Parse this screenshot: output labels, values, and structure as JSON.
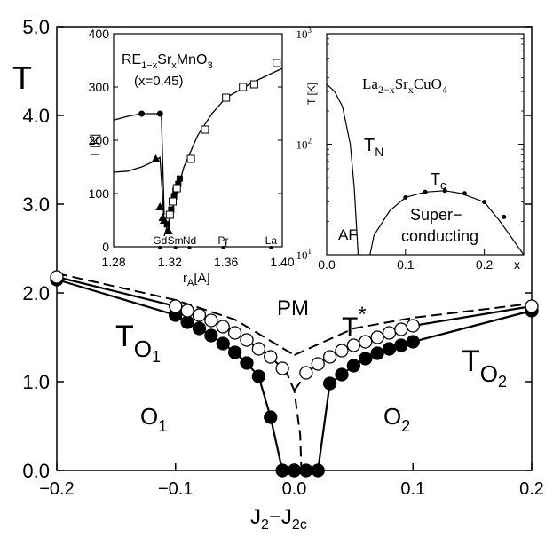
{
  "chart_data": [
    {
      "panel": "main",
      "type": "line",
      "xlabel": "J",
      "xlabel_sub1": "2",
      "xlabel_mid": "−J",
      "xlabel_sub2": "2c",
      "ylabel": "T",
      "xlim": [
        -0.2,
        0.2
      ],
      "ylim": [
        0,
        5
      ],
      "xticks": [
        "−0.2",
        "−0.1",
        "0.0",
        "0.1",
        "0.2"
      ],
      "yticks": [
        "0.0",
        "1.0",
        "2.0",
        "3.0",
        "4.0",
        "5.0"
      ],
      "annotations": {
        "pm": "PM",
        "tstar": "T",
        "tstar_sup": "*",
        "to1": "T",
        "to1_sub": "O",
        "to1_subsub": "1",
        "to2": "T",
        "to2_sub": "O",
        "to2_subsub": "2",
        "o1": "O",
        "o1_sub": "1",
        "o2": "O",
        "o2_sub": "2"
      },
      "series": [
        {
          "marker": "filled-circle",
          "style": "solid",
          "values_left": [
            [
              -0.2,
              2.15
            ],
            [
              -0.1,
              1.75
            ],
            [
              -0.09,
              1.67
            ],
            [
              -0.08,
              1.6
            ],
            [
              -0.07,
              1.52
            ],
            [
              -0.06,
              1.43
            ],
            [
              -0.05,
              1.33
            ],
            [
              -0.04,
              1.21
            ],
            [
              -0.03,
              1.06
            ],
            [
              -0.02,
              0.6
            ],
            [
              -0.01,
              0.0
            ],
            [
              0.0,
              0.0
            ]
          ],
          "values_right": [
            [
              0.0,
              0.0
            ],
            [
              0.01,
              0.0
            ],
            [
              0.02,
              0.0
            ],
            [
              0.03,
              0.98
            ],
            [
              0.04,
              1.08
            ],
            [
              0.05,
              1.18
            ],
            [
              0.06,
              1.26
            ],
            [
              0.07,
              1.32
            ],
            [
              0.08,
              1.37
            ],
            [
              0.09,
              1.41
            ],
            [
              0.1,
              1.45
            ],
            [
              0.2,
              1.8
            ]
          ]
        },
        {
          "marker": "open-circle",
          "style": "solid",
          "values_left": [
            [
              -0.2,
              2.18
            ],
            [
              -0.1,
              1.85
            ],
            [
              -0.09,
              1.8
            ],
            [
              -0.08,
              1.75
            ],
            [
              -0.07,
              1.69
            ],
            [
              -0.06,
              1.62
            ],
            [
              -0.05,
              1.55
            ],
            [
              -0.04,
              1.47
            ],
            [
              -0.03,
              1.37
            ],
            [
              -0.02,
              1.28
            ],
            [
              -0.01,
              1.15
            ]
          ],
          "values_right": [
            [
              0.01,
              1.1
            ],
            [
              0.02,
              1.2
            ],
            [
              0.03,
              1.28
            ],
            [
              0.04,
              1.35
            ],
            [
              0.05,
              1.41
            ],
            [
              0.06,
              1.45
            ],
            [
              0.07,
              1.5
            ],
            [
              0.08,
              1.55
            ],
            [
              0.09,
              1.59
            ],
            [
              0.1,
              1.63
            ],
            [
              0.2,
              1.85
            ]
          ]
        },
        {
          "marker": "none",
          "style": "dashed",
          "values_left": [
            [
              -0.2,
              2.22
            ],
            [
              -0.1,
              1.92
            ],
            [
              -0.05,
              1.7
            ],
            [
              0.0,
              1.3
            ]
          ],
          "values_right": [
            [
              0.0,
              1.3
            ],
            [
              0.05,
              1.6
            ],
            [
              0.1,
              1.72
            ],
            [
              0.2,
              1.88
            ]
          ]
        },
        {
          "marker": "none",
          "style": "dashed",
          "values_left": [
            [
              -0.008,
              1.15
            ],
            [
              0.0,
              0.9
            ],
            [
              0.005,
              0.4
            ],
            [
              0.006,
              0.0
            ]
          ],
          "values_right": [
            [
              0.0,
              0.9
            ],
            [
              0.008,
              1.05
            ]
          ]
        }
      ]
    },
    {
      "panel": "inset-left",
      "type": "scatter",
      "title_line1": "RE",
      "title_sub1": "1−x",
      "title_mid": "Sr",
      "title_sub2": "x",
      "title_end": "MnO",
      "title_sub3": "3",
      "title_line2": "(x=0.45)",
      "xlabel": "r",
      "xlabel_sub": "A",
      "xlabel_unit": "[A]",
      "ylabel": "T [K]",
      "xlim": [
        1.28,
        1.4
      ],
      "ylim": [
        0,
        400
      ],
      "xticks": [
        "1.28",
        "1.32",
        "1.36",
        "1.40"
      ],
      "yticks": [
        "0",
        "100",
        "200",
        "300",
        "400"
      ],
      "elements": [
        "Gd",
        "Sm",
        "Nd",
        "Pr",
        "La"
      ],
      "element_x": [
        1.313,
        1.324,
        1.334,
        1.358,
        1.392
      ],
      "curves": {
        "circle_line": [
          [
            1.28,
            238
          ],
          [
            1.29,
            245
          ],
          [
            1.3,
            250
          ],
          [
            1.31,
            250
          ],
          [
            1.314,
            248
          ],
          [
            1.316,
            60
          ]
        ],
        "triangle_line": [
          [
            1.28,
            140
          ],
          [
            1.29,
            142
          ],
          [
            1.3,
            150
          ],
          [
            1.31,
            162
          ],
          [
            1.313,
            168
          ],
          [
            1.316,
            45
          ]
        ],
        "square_line": [
          [
            1.316,
            20
          ],
          [
            1.32,
            55
          ],
          [
            1.33,
            150
          ],
          [
            1.34,
            210
          ],
          [
            1.35,
            250
          ],
          [
            1.36,
            280
          ],
          [
            1.38,
            310
          ],
          [
            1.4,
            335
          ]
        ]
      },
      "points": {
        "filled_circles": [
          [
            1.3,
            250
          ],
          [
            1.313,
            250
          ]
        ],
        "filled_triangles": [
          [
            1.31,
            165
          ],
          [
            1.313,
            75
          ],
          [
            1.315,
            55
          ],
          [
            1.316,
            50
          ],
          [
            1.319,
            30
          ]
        ],
        "filled_squares": [
          [
            1.318,
            42
          ],
          [
            1.321,
            70
          ],
          [
            1.323,
            95
          ],
          [
            1.324,
            105
          ],
          [
            1.326,
            118
          ],
          [
            1.327,
            128
          ]
        ],
        "open_squares": [
          [
            1.32,
            60
          ],
          [
            1.322,
            85
          ],
          [
            1.325,
            110
          ],
          [
            1.335,
            165
          ],
          [
            1.345,
            220
          ],
          [
            1.36,
            280
          ],
          [
            1.372,
            300
          ],
          [
            1.38,
            305
          ],
          [
            1.396,
            345
          ]
        ]
      }
    },
    {
      "panel": "inset-right",
      "type": "line",
      "title": "La",
      "title_sub1": "2−x",
      "title_mid": "Sr",
      "title_sub2": "x",
      "title_end": "CuO",
      "title_sub3": "4",
      "ylabel": "T [K]",
      "yscale": "log",
      "ylim": [
        10,
        1000
      ],
      "xlim": [
        0,
        0.25
      ],
      "xlabel": "x",
      "xticks": [
        "0.0",
        "0.1",
        "0.2"
      ],
      "yticks": [
        "10",
        "10",
        "10"
      ],
      "ytick_sups": [
        "1",
        "2",
        "3"
      ],
      "labels": {
        "tn": "T",
        "tn_sub": "N",
        "tc": "T",
        "tc_sub": "c",
        "af": "AF",
        "sc_line1": "Super−",
        "sc_line2": "conducting"
      },
      "tn_curve": [
        [
          0.0,
          350
        ],
        [
          0.01,
          300
        ],
        [
          0.02,
          220
        ],
        [
          0.03,
          100
        ],
        [
          0.035,
          40
        ],
        [
          0.04,
          10
        ]
      ],
      "tc_curve": [
        [
          0.055,
          10
        ],
        [
          0.06,
          15
        ],
        [
          0.08,
          25
        ],
        [
          0.1,
          33
        ],
        [
          0.125,
          37
        ],
        [
          0.15,
          38
        ],
        [
          0.17,
          36
        ],
        [
          0.2,
          30
        ],
        [
          0.22,
          20
        ],
        [
          0.25,
          10
        ]
      ],
      "tc_points": [
        [
          0.1,
          33
        ],
        [
          0.125,
          37
        ],
        [
          0.15,
          38
        ],
        [
          0.175,
          36
        ],
        [
          0.2,
          30
        ],
        [
          0.225,
          22
        ]
      ]
    }
  ]
}
